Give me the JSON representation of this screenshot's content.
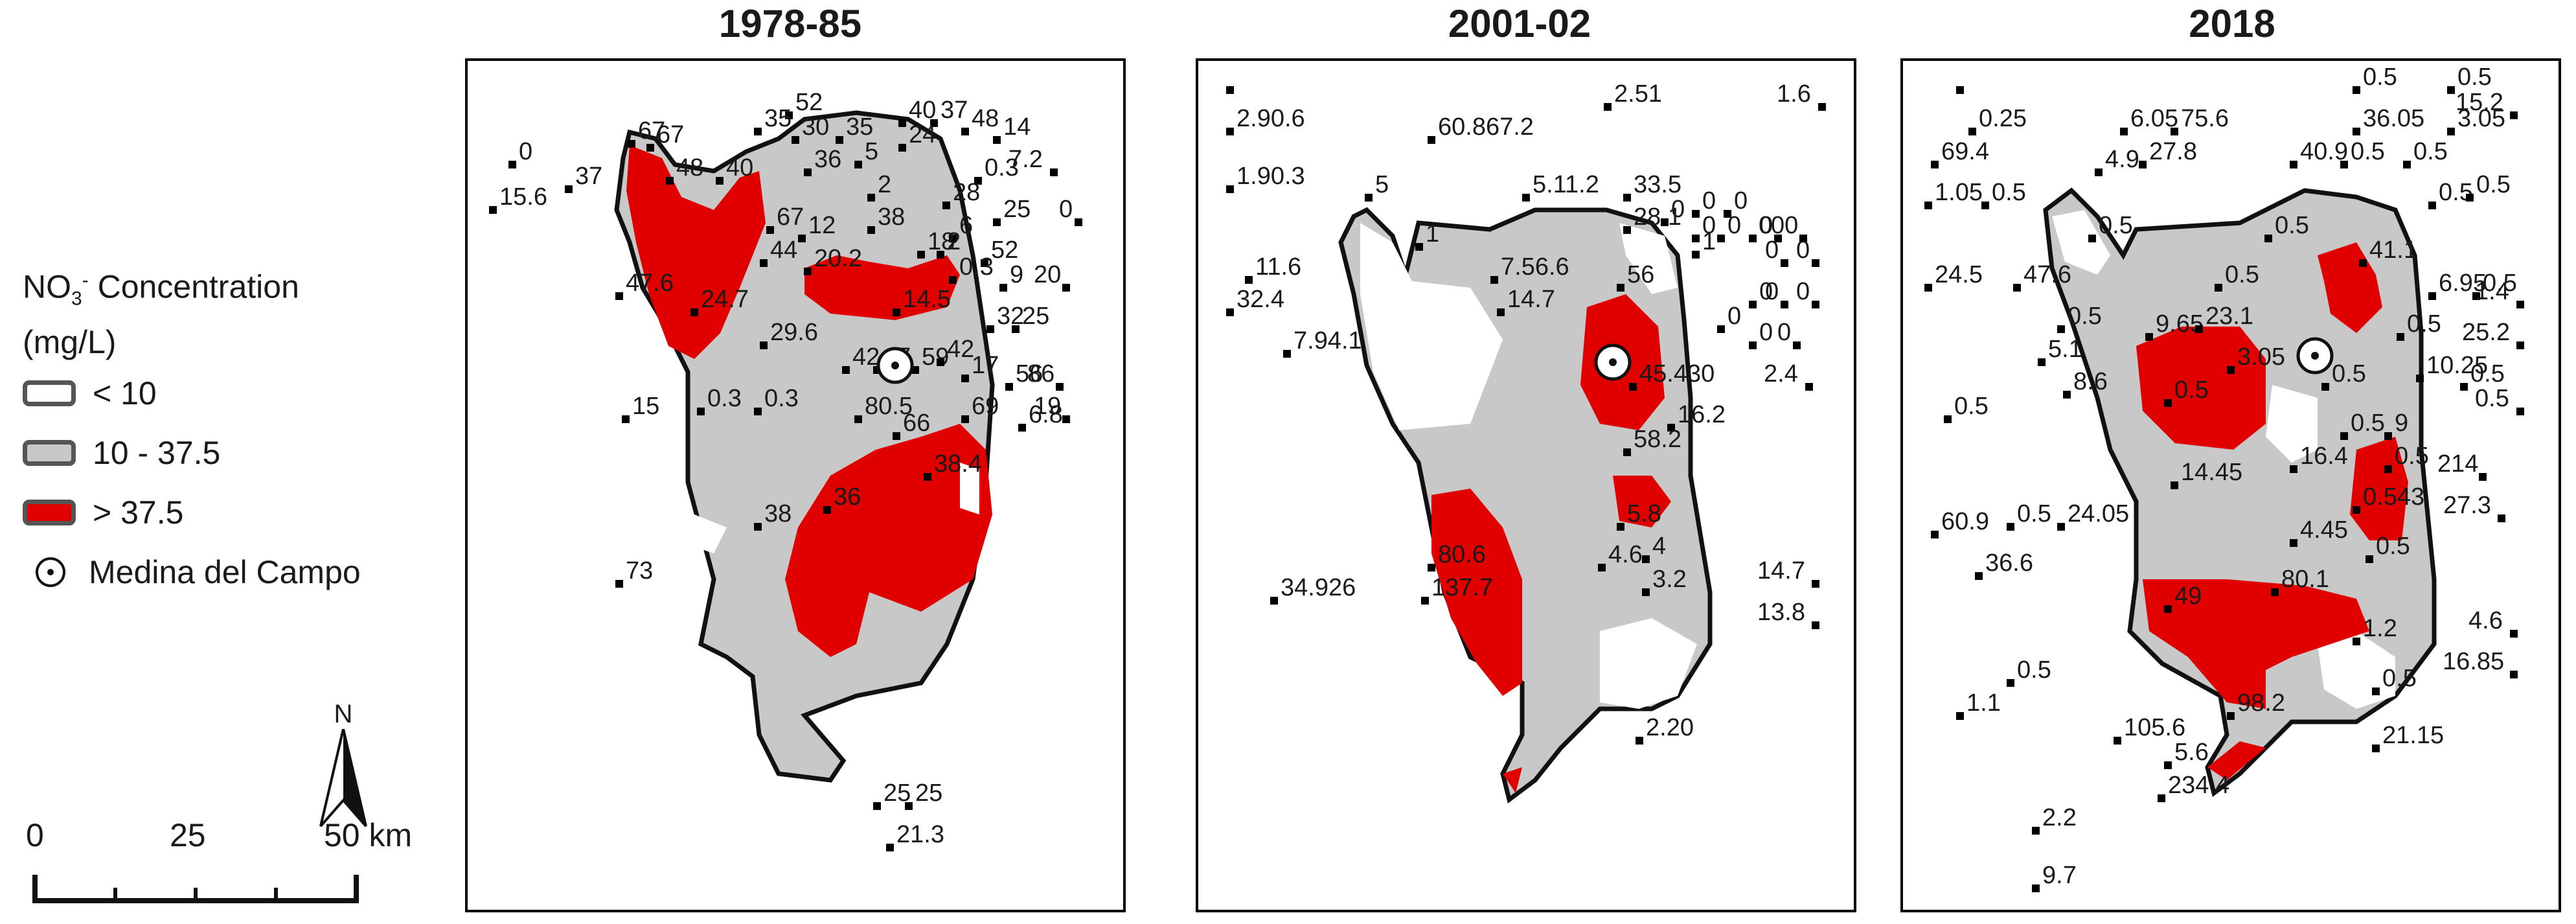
{
  "panels": [
    {
      "title": "1978-85",
      "points": [
        {
          "x": 0.05,
          "y": 0.11,
          "label": "0"
        },
        {
          "x": 0.02,
          "y": 0.165,
          "label": "15.6"
        },
        {
          "x": 0.14,
          "y": 0.14,
          "label": "37"
        },
        {
          "x": 0.24,
          "y": 0.085,
          "label": "67"
        },
        {
          "x": 0.27,
          "y": 0.09,
          "label": "67"
        },
        {
          "x": 0.3,
          "y": 0.13,
          "label": "48"
        },
        {
          "x": 0.38,
          "y": 0.13,
          "label": "40"
        },
        {
          "x": 0.49,
          "y": 0.05,
          "label": "52"
        },
        {
          "x": 0.44,
          "y": 0.07,
          "label": "35"
        },
        {
          "x": 0.5,
          "y": 0.08,
          "label": "30"
        },
        {
          "x": 0.57,
          "y": 0.08,
          "label": "35"
        },
        {
          "x": 0.6,
          "y": 0.11,
          "label": "5"
        },
        {
          "x": 0.52,
          "y": 0.12,
          "label": "36"
        },
        {
          "x": 0.62,
          "y": 0.15,
          "label": "2"
        },
        {
          "x": 0.67,
          "y": 0.06,
          "label": "40"
        },
        {
          "x": 0.72,
          "y": 0.06,
          "label": "37"
        },
        {
          "x": 0.77,
          "y": 0.07,
          "label": "48"
        },
        {
          "x": 0.82,
          "y": 0.08,
          "label": "14"
        },
        {
          "x": 0.67,
          "y": 0.09,
          "label": "24"
        },
        {
          "x": 0.79,
          "y": 0.13,
          "label": "0.3"
        },
        {
          "x": 0.74,
          "y": 0.16,
          "label": "28"
        },
        {
          "x": 0.82,
          "y": 0.18,
          "label": "25"
        },
        {
          "x": 0.91,
          "y": 0.12,
          "label": "7.2"
        },
        {
          "x": 0.95,
          "y": 0.18,
          "label": "0"
        },
        {
          "x": 0.46,
          "y": 0.19,
          "label": "67"
        },
        {
          "x": 0.51,
          "y": 0.2,
          "label": "12"
        },
        {
          "x": 0.62,
          "y": 0.19,
          "label": "38"
        },
        {
          "x": 0.75,
          "y": 0.2,
          "label": "6"
        },
        {
          "x": 0.8,
          "y": 0.23,
          "label": "52"
        },
        {
          "x": 0.7,
          "y": 0.22,
          "label": "18"
        },
        {
          "x": 0.73,
          "y": 0.22,
          "label": "2"
        },
        {
          "x": 0.45,
          "y": 0.23,
          "label": "44"
        },
        {
          "x": 0.52,
          "y": 0.24,
          "label": "20.2"
        },
        {
          "x": 0.75,
          "y": 0.25,
          "label": "0.3"
        },
        {
          "x": 0.83,
          "y": 0.26,
          "label": "9"
        },
        {
          "x": 0.93,
          "y": 0.26,
          "label": "20"
        },
        {
          "x": 0.22,
          "y": 0.27,
          "label": "47.6"
        },
        {
          "x": 0.34,
          "y": 0.29,
          "label": "24.7"
        },
        {
          "x": 0.66,
          "y": 0.29,
          "label": "14.5"
        },
        {
          "x": 0.81,
          "y": 0.31,
          "label": "32"
        },
        {
          "x": 0.85,
          "y": 0.31,
          "label": "25"
        },
        {
          "x": 0.45,
          "y": 0.33,
          "label": "29.6"
        },
        {
          "x": 0.58,
          "y": 0.36,
          "label": "42"
        },
        {
          "x": 0.63,
          "y": 0.36,
          "label": "17"
        },
        {
          "x": 0.69,
          "y": 0.36,
          "label": "59"
        },
        {
          "x": 0.73,
          "y": 0.35,
          "label": "42"
        },
        {
          "x": 0.77,
          "y": 0.37,
          "label": "17"
        },
        {
          "x": 0.84,
          "y": 0.38,
          "label": "56"
        },
        {
          "x": 0.92,
          "y": 0.38,
          "label": "86"
        },
        {
          "x": 0.23,
          "y": 0.42,
          "label": "15"
        },
        {
          "x": 0.35,
          "y": 0.41,
          "label": "0.3"
        },
        {
          "x": 0.44,
          "y": 0.41,
          "label": "0.3"
        },
        {
          "x": 0.6,
          "y": 0.42,
          "label": "80.5"
        },
        {
          "x": 0.77,
          "y": 0.42,
          "label": "69"
        },
        {
          "x": 0.86,
          "y": 0.43,
          "label": "6.8"
        },
        {
          "x": 0.93,
          "y": 0.42,
          "label": "19"
        },
        {
          "x": 0.66,
          "y": 0.44,
          "label": "66"
        },
        {
          "x": 0.71,
          "y": 0.49,
          "label": "38.4"
        },
        {
          "x": 0.55,
          "y": 0.53,
          "label": "36"
        },
        {
          "x": 0.44,
          "y": 0.55,
          "label": "38"
        },
        {
          "x": 0.22,
          "y": 0.62,
          "label": "73"
        },
        {
          "x": 0.63,
          "y": 0.89,
          "label": "25"
        },
        {
          "x": 0.68,
          "y": 0.89,
          "label": "25"
        },
        {
          "x": 0.65,
          "y": 0.94,
          "label": "21.3"
        }
      ]
    },
    {
      "title": "2001-02",
      "points": [
        {
          "x": 0.03,
          "y": 0.02,
          "label": ""
        },
        {
          "x": 0.03,
          "y": 0.07,
          "label": "2.90.6"
        },
        {
          "x": 0.35,
          "y": 0.08,
          "label": "60.867.2"
        },
        {
          "x": 0.63,
          "y": 0.04,
          "label": "2.51"
        },
        {
          "x": 0.97,
          "y": 0.04,
          "label": "1.6"
        },
        {
          "x": 0.03,
          "y": 0.14,
          "label": "1.90.3"
        },
        {
          "x": 0.25,
          "y": 0.15,
          "label": "5"
        },
        {
          "x": 0.33,
          "y": 0.21,
          "label": "1"
        },
        {
          "x": 0.5,
          "y": 0.15,
          "label": "5.11.2"
        },
        {
          "x": 0.66,
          "y": 0.15,
          "label": "33.5"
        },
        {
          "x": 0.66,
          "y": 0.19,
          "label": "28.1"
        },
        {
          "x": 0.72,
          "y": 0.18,
          "label": "0"
        },
        {
          "x": 0.77,
          "y": 0.17,
          "label": "0"
        },
        {
          "x": 0.82,
          "y": 0.17,
          "label": "0"
        },
        {
          "x": 0.77,
          "y": 0.2,
          "label": "0"
        },
        {
          "x": 0.81,
          "y": 0.2,
          "label": "0"
        },
        {
          "x": 0.86,
          "y": 0.2,
          "label": "0"
        },
        {
          "x": 0.9,
          "y": 0.2,
          "label": "0"
        },
        {
          "x": 0.94,
          "y": 0.2,
          "label": "00"
        },
        {
          "x": 0.77,
          "y": 0.22,
          "label": "1"
        },
        {
          "x": 0.91,
          "y": 0.23,
          "label": "0"
        },
        {
          "x": 0.96,
          "y": 0.23,
          "label": "0"
        },
        {
          "x": 0.06,
          "y": 0.25,
          "label": "11.6"
        },
        {
          "x": 0.03,
          "y": 0.29,
          "label": "32.4"
        },
        {
          "x": 0.45,
          "y": 0.25,
          "label": "7.56.6"
        },
        {
          "x": 0.46,
          "y": 0.29,
          "label": "14.7"
        },
        {
          "x": 0.65,
          "y": 0.26,
          "label": "56"
        },
        {
          "x": 0.86,
          "y": 0.28,
          "label": "0"
        },
        {
          "x": 0.91,
          "y": 0.28,
          "label": "0"
        },
        {
          "x": 0.96,
          "y": 0.28,
          "label": "0"
        },
        {
          "x": 0.81,
          "y": 0.31,
          "label": "0"
        },
        {
          "x": 0.86,
          "y": 0.33,
          "label": "0"
        },
        {
          "x": 0.93,
          "y": 0.33,
          "label": "0"
        },
        {
          "x": 0.12,
          "y": 0.34,
          "label": "7.94.1"
        },
        {
          "x": 0.67,
          "y": 0.38,
          "label": "45.430"
        },
        {
          "x": 0.95,
          "y": 0.38,
          "label": "2.4"
        },
        {
          "x": 0.73,
          "y": 0.43,
          "label": "16.2"
        },
        {
          "x": 0.66,
          "y": 0.46,
          "label": "58.2"
        },
        {
          "x": 0.65,
          "y": 0.55,
          "label": "5.8"
        },
        {
          "x": 0.69,
          "y": 0.59,
          "label": "4"
        },
        {
          "x": 0.62,
          "y": 0.6,
          "label": "4.6"
        },
        {
          "x": 0.69,
          "y": 0.63,
          "label": "3.2"
        },
        {
          "x": 0.35,
          "y": 0.6,
          "label": "80.6"
        },
        {
          "x": 0.1,
          "y": 0.64,
          "label": "34.926"
        },
        {
          "x": 0.34,
          "y": 0.64,
          "label": "137.7"
        },
        {
          "x": 0.96,
          "y": 0.62,
          "label": "14.7"
        },
        {
          "x": 0.96,
          "y": 0.67,
          "label": "13.8"
        },
        {
          "x": 0.68,
          "y": 0.81,
          "label": "2.20"
        }
      ]
    },
    {
      "title": "2018",
      "points": [
        {
          "x": 0.07,
          "y": 0.02,
          "label": ""
        },
        {
          "x": 0.09,
          "y": 0.07,
          "label": "0.25"
        },
        {
          "x": 0.7,
          "y": 0.02,
          "label": "0.5"
        },
        {
          "x": 0.85,
          "y": 0.02,
          "label": "0.5"
        },
        {
          "x": 0.95,
          "y": 0.05,
          "label": "15.2"
        },
        {
          "x": 0.33,
          "y": 0.07,
          "label": "6.05"
        },
        {
          "x": 0.41,
          "y": 0.07,
          "label": "75.6"
        },
        {
          "x": 0.7,
          "y": 0.07,
          "label": "36.05"
        },
        {
          "x": 0.85,
          "y": 0.07,
          "label": "3.05"
        },
        {
          "x": 0.03,
          "y": 0.11,
          "label": "69.4"
        },
        {
          "x": 0.29,
          "y": 0.12,
          "label": "4.9"
        },
        {
          "x": 0.36,
          "y": 0.11,
          "label": "27.8"
        },
        {
          "x": 0.6,
          "y": 0.11,
          "label": "40.9"
        },
        {
          "x": 0.68,
          "y": 0.11,
          "label": "0.5"
        },
        {
          "x": 0.78,
          "y": 0.11,
          "label": "0.5"
        },
        {
          "x": 0.02,
          "y": 0.16,
          "label": "1.05"
        },
        {
          "x": 0.11,
          "y": 0.16,
          "label": "0.5"
        },
        {
          "x": 0.82,
          "y": 0.16,
          "label": "0.5"
        },
        {
          "x": 0.88,
          "y": 0.15,
          "label": "0.5"
        },
        {
          "x": 0.28,
          "y": 0.2,
          "label": "0.5"
        },
        {
          "x": 0.56,
          "y": 0.2,
          "label": "0.5"
        },
        {
          "x": 0.02,
          "y": 0.26,
          "label": "24.5"
        },
        {
          "x": 0.16,
          "y": 0.26,
          "label": "47.6"
        },
        {
          "x": 0.48,
          "y": 0.26,
          "label": "0.5"
        },
        {
          "x": 0.71,
          "y": 0.23,
          "label": "41.1"
        },
        {
          "x": 0.82,
          "y": 0.27,
          "label": "6.95"
        },
        {
          "x": 0.89,
          "y": 0.27,
          "label": "0.5"
        },
        {
          "x": 0.96,
          "y": 0.28,
          "label": "1.4"
        },
        {
          "x": 0.23,
          "y": 0.31,
          "label": "0.5"
        },
        {
          "x": 0.37,
          "y": 0.32,
          "label": "9.65"
        },
        {
          "x": 0.45,
          "y": 0.31,
          "label": "23.1"
        },
        {
          "x": 0.77,
          "y": 0.32,
          "label": "0.5"
        },
        {
          "x": 0.96,
          "y": 0.33,
          "label": "25.2"
        },
        {
          "x": 0.2,
          "y": 0.35,
          "label": "5.1"
        },
        {
          "x": 0.5,
          "y": 0.36,
          "label": "3.05"
        },
        {
          "x": 0.65,
          "y": 0.38,
          "label": "0.5"
        },
        {
          "x": 0.8,
          "y": 0.37,
          "label": "10.25"
        },
        {
          "x": 0.87,
          "y": 0.38,
          "label": "0.5"
        },
        {
          "x": 0.24,
          "y": 0.39,
          "label": "8.6"
        },
        {
          "x": 0.4,
          "y": 0.4,
          "label": "0.5"
        },
        {
          "x": 0.05,
          "y": 0.42,
          "label": "0.5"
        },
        {
          "x": 0.96,
          "y": 0.41,
          "label": "0.5"
        },
        {
          "x": 0.68,
          "y": 0.44,
          "label": "0.5"
        },
        {
          "x": 0.75,
          "y": 0.44,
          "label": "9"
        },
        {
          "x": 0.6,
          "y": 0.48,
          "label": "16.4"
        },
        {
          "x": 0.41,
          "y": 0.5,
          "label": "14.45"
        },
        {
          "x": 0.75,
          "y": 0.48,
          "label": "0.5"
        },
        {
          "x": 0.9,
          "y": 0.49,
          "label": "214"
        },
        {
          "x": 0.7,
          "y": 0.53,
          "label": "0.543"
        },
        {
          "x": 0.93,
          "y": 0.54,
          "label": "27.3"
        },
        {
          "x": 0.03,
          "y": 0.56,
          "label": "60.9"
        },
        {
          "x": 0.15,
          "y": 0.55,
          "label": "0.5"
        },
        {
          "x": 0.23,
          "y": 0.55,
          "label": "24.05"
        },
        {
          "x": 0.6,
          "y": 0.57,
          "label": "4.45"
        },
        {
          "x": 0.72,
          "y": 0.59,
          "label": "0.5"
        },
        {
          "x": 0.1,
          "y": 0.61,
          "label": "36.6"
        },
        {
          "x": 0.57,
          "y": 0.63,
          "label": "80.1"
        },
        {
          "x": 0.4,
          "y": 0.65,
          "label": "49"
        },
        {
          "x": 0.7,
          "y": 0.69,
          "label": "1.2"
        },
        {
          "x": 0.95,
          "y": 0.68,
          "label": "4.6"
        },
        {
          "x": 0.95,
          "y": 0.73,
          "label": "16.85"
        },
        {
          "x": 0.15,
          "y": 0.74,
          "label": "0.5"
        },
        {
          "x": 0.73,
          "y": 0.75,
          "label": "0.5"
        },
        {
          "x": 0.07,
          "y": 0.78,
          "label": "1.1"
        },
        {
          "x": 0.32,
          "y": 0.81,
          "label": "105.6"
        },
        {
          "x": 0.5,
          "y": 0.78,
          "label": "98.2"
        },
        {
          "x": 0.73,
          "y": 0.82,
          "label": "21.15"
        },
        {
          "x": 0.4,
          "y": 0.84,
          "label": "5.6"
        },
        {
          "x": 0.39,
          "y": 0.88,
          "label": "234.4"
        },
        {
          "x": 0.19,
          "y": 0.92,
          "label": "2.2"
        },
        {
          "x": 0.19,
          "y": 0.99,
          "label": "9.7"
        }
      ]
    }
  ],
  "legend": {
    "title_line1_prefix": "NO",
    "title_line1_sub": "3",
    "title_line1_sup": "-",
    "title_line1_suffix": " Concentration",
    "title_line2": "(mg/L)",
    "items": [
      {
        "label": "< 10",
        "color": "#ffffff"
      },
      {
        "label": "10 - 37.5",
        "color": "#c8c8c8"
      },
      {
        "label": "> 37.5",
        "color": "#e00000"
      }
    ],
    "city_label": "Medina del Campo"
  },
  "scale": {
    "ticks": [
      "0",
      "25",
      "50 km"
    ]
  },
  "north_label": "N"
}
